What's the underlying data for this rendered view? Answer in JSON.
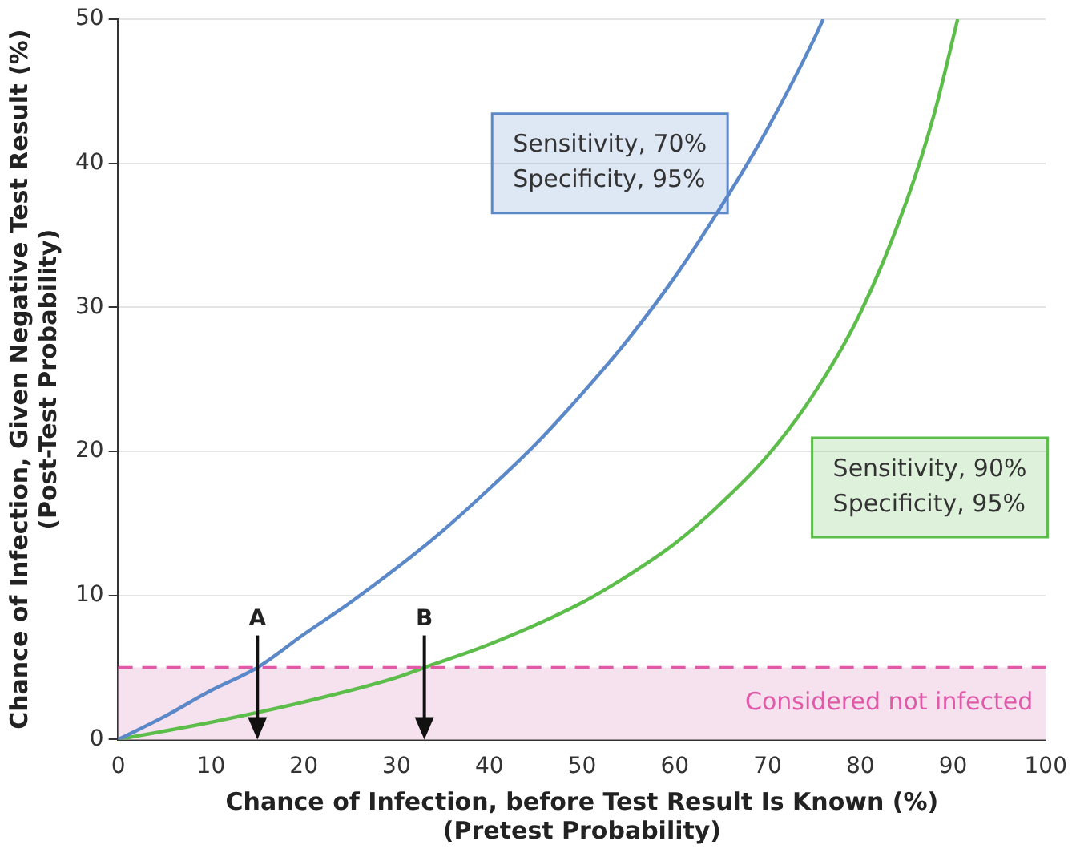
{
  "chart_data": {
    "type": "line",
    "xlabel": "Chance of Infection, before Test Result Is Known (%)\n(Pretest Probability)",
    "ylabel": "Chance of Infection, Given Negative Test Result (%)\n(Post-Test Probability)",
    "series": [
      {
        "name": "Sensitivity, 70%\nSpecificity, 95%",
        "color": "#5b88c8",
        "x": [
          0,
          5,
          10,
          15,
          20,
          25,
          30,
          35,
          40,
          45,
          50,
          55,
          60,
          65,
          70,
          75,
          76
        ],
        "values": [
          0,
          1.6,
          3.4,
          5.0,
          7.3,
          9.5,
          11.9,
          14.5,
          17.4,
          20.5,
          24.0,
          27.8,
          32.1,
          37.0,
          42.4,
          48.6,
          50
        ]
      },
      {
        "name": "Sensitivity, 90%\nSpecificity, 95%",
        "color": "#5cbd4a",
        "x": [
          0,
          10,
          20,
          30,
          33,
          40,
          50,
          55,
          60,
          65,
          70,
          75,
          80,
          85,
          88,
          90.5
        ],
        "values": [
          0,
          1.2,
          2.6,
          4.3,
          5.0,
          6.6,
          9.5,
          11.4,
          13.6,
          16.4,
          19.7,
          24.0,
          29.6,
          37.4,
          43.5,
          50
        ]
      }
    ],
    "xlim": [
      0,
      100
    ],
    "xticks": [
      0,
      10,
      20,
      30,
      40,
      50,
      60,
      70,
      80,
      90,
      100
    ],
    "ylim": [
      0,
      50
    ],
    "yticks": [
      0,
      10,
      20,
      30,
      40,
      50
    ],
    "grid": "y",
    "legend": false,
    "marker": "none",
    "line_style": "solid",
    "ref_lines": [
      {
        "axis": "y",
        "value": 5,
        "color": "#e05aa8",
        "line_style": "dashed"
      }
    ],
    "bands": [
      {
        "axis": "y",
        "from": 0,
        "to": 5,
        "label": "Considered not infected",
        "color": "#f6e1ee"
      }
    ],
    "annotations": [
      {
        "text": "A",
        "x": 15,
        "y": 5
      },
      {
        "text": "B",
        "x": 33,
        "y": 5
      }
    ]
  }
}
